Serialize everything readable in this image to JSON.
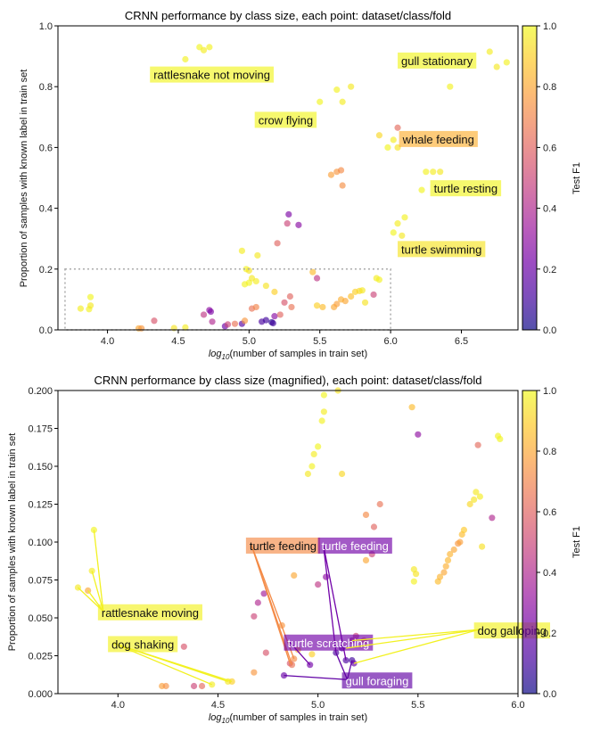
{
  "colors": {
    "viridis_stops": [
      "#0d0887",
      "#46039f",
      "#7201a8",
      "#9c179e",
      "#bd3786",
      "#d8576b",
      "#ed7953",
      "#fb9f3a",
      "#fdca26",
      "#f0f921"
    ]
  },
  "colorbar": {
    "label": "Test F1",
    "ticks": [
      "0.0",
      "0.2",
      "0.4",
      "0.6",
      "0.8",
      "1.0"
    ]
  },
  "chart_data": [
    {
      "type": "scatter",
      "title": "CRNN performance by class size, each point: dataset/class/fold",
      "xlabel_prefix": "log",
      "xlabel_sub": "10",
      "xlabel_suffix": "(number of samples in train set)",
      "ylabel": "Proportion of samples with known label in train set",
      "xlim": [
        3.65,
        6.9
      ],
      "ylim": [
        0.0,
        1.0
      ],
      "xticks": [
        4.0,
        4.5,
        5.0,
        5.5,
        6.0,
        6.5
      ],
      "xtick_labels": [
        "4.0",
        "4.5",
        "5.0",
        "5.5",
        "6.0",
        "6.5"
      ],
      "yticks": [
        0.0,
        0.2,
        0.4,
        0.6,
        0.8,
        1.0
      ],
      "ytick_labels": [
        "0.0",
        "0.2",
        "0.4",
        "0.6",
        "0.8",
        "1.0"
      ],
      "zoom_box": {
        "x": [
          3.7,
          6.0
        ],
        "y": [
          0.0,
          0.2
        ]
      },
      "points": [
        [
          4.55,
          0.89,
          0.98
        ],
        [
          4.65,
          0.93,
          0.99
        ],
        [
          4.68,
          0.92,
          0.97
        ],
        [
          4.72,
          0.93,
          0.98
        ],
        [
          5.62,
          0.79,
          0.98
        ],
        [
          5.66,
          0.75,
          0.97
        ],
        [
          5.72,
          0.8,
          0.96
        ],
        [
          5.5,
          0.75,
          0.99
        ],
        [
          6.42,
          0.8,
          0.98
        ],
        [
          6.7,
          0.915,
          0.97
        ],
        [
          6.75,
          0.865,
          0.96
        ],
        [
          6.82,
          0.88,
          0.98
        ],
        [
          6.05,
          0.665,
          0.62
        ],
        [
          5.98,
          0.6,
          0.99
        ],
        [
          6.02,
          0.625,
          0.97
        ],
        [
          6.05,
          0.6,
          0.95
        ],
        [
          5.92,
          0.64,
          0.92
        ],
        [
          6.25,
          0.52,
          0.98
        ],
        [
          6.3,
          0.52,
          0.97
        ],
        [
          6.35,
          0.52,
          0.96
        ],
        [
          6.22,
          0.46,
          0.99
        ],
        [
          5.62,
          0.52,
          0.75
        ],
        [
          5.65,
          0.525,
          0.72
        ],
        [
          5.58,
          0.51,
          0.78
        ],
        [
          5.66,
          0.475,
          0.73
        ],
        [
          6.1,
          0.37,
          0.98
        ],
        [
          6.05,
          0.35,
          0.97
        ],
        [
          6.02,
          0.32,
          0.99
        ],
        [
          6.08,
          0.31,
          0.96
        ],
        [
          5.28,
          0.38,
          0.25
        ],
        [
          5.27,
          0.35,
          0.5
        ],
        [
          5.35,
          0.345,
          0.28
        ],
        [
          5.2,
          0.285,
          0.6
        ],
        [
          4.95,
          0.26,
          0.97
        ],
        [
          5.06,
          0.245,
          0.96
        ],
        [
          4.98,
          0.2,
          0.98
        ],
        [
          5.0,
          0.195,
          0.95
        ],
        [
          3.81,
          0.07,
          0.97
        ],
        [
          3.87,
          0.068,
          0.98
        ],
        [
          3.88,
          0.08,
          0.96
        ],
        [
          3.88,
          0.108,
          0.99
        ],
        [
          4.22,
          0.005,
          0.8
        ],
        [
          4.24,
          0.005,
          0.75
        ],
        [
          4.33,
          0.03,
          0.55
        ],
        [
          4.47,
          0.006,
          0.95
        ],
        [
          4.55,
          0.008,
          0.97
        ],
        [
          4.68,
          0.05,
          0.45
        ],
        [
          4.72,
          0.065,
          0.3
        ],
        [
          4.73,
          0.06,
          0.25
        ],
        [
          4.74,
          0.027,
          0.4
        ],
        [
          4.83,
          0.012,
          0.2
        ],
        [
          4.85,
          0.018,
          0.5
        ],
        [
          4.9,
          0.02,
          0.65
        ],
        [
          4.95,
          0.02,
          0.15
        ],
        [
          4.97,
          0.03,
          0.75
        ],
        [
          5.02,
          0.07,
          0.65
        ],
        [
          5.05,
          0.075,
          0.7
        ],
        [
          5.09,
          0.027,
          0.12
        ],
        [
          5.12,
          0.032,
          0.1
        ],
        [
          5.16,
          0.025,
          0.05
        ],
        [
          5.17,
          0.022,
          0.1
        ],
        [
          5.18,
          0.045,
          0.28
        ],
        [
          5.22,
          0.05,
          0.6
        ],
        [
          5.25,
          0.09,
          0.55
        ],
        [
          5.29,
          0.11,
          0.6
        ],
        [
          5.3,
          0.075,
          0.65
        ],
        [
          5.48,
          0.08,
          0.9
        ],
        [
          5.52,
          0.075,
          0.85
        ],
        [
          5.6,
          0.075,
          0.8
        ],
        [
          5.62,
          0.085,
          0.78
        ],
        [
          5.65,
          0.1,
          0.82
        ],
        [
          5.68,
          0.095,
          0.8
        ],
        [
          5.72,
          0.11,
          0.86
        ],
        [
          5.75,
          0.125,
          0.9
        ],
        [
          5.78,
          0.128,
          0.92
        ],
        [
          5.8,
          0.13,
          0.96
        ],
        [
          5.82,
          0.09,
          0.95
        ],
        [
          5.88,
          0.116,
          0.5
        ],
        [
          5.9,
          0.17,
          0.97
        ],
        [
          5.92,
          0.165,
          0.98
        ],
        [
          5.12,
          0.145,
          0.95
        ],
        [
          5.18,
          0.125,
          0.9
        ],
        [
          5.05,
          0.16,
          0.97
        ],
        [
          4.97,
          0.15,
          0.98
        ],
        [
          5.0,
          0.155,
          0.99
        ],
        [
          5.02,
          0.17,
          0.96
        ],
        [
          5.45,
          0.19,
          0.85
        ],
        [
          5.48,
          0.17,
          0.45
        ]
      ],
      "annotations": [
        {
          "text": "rattlesnake not moving",
          "x": 4.3,
          "y": 0.834,
          "color": 0.99
        },
        {
          "text": "gull stationary",
          "x": 6.05,
          "y": 0.88,
          "color": 0.99
        },
        {
          "text": "crow flying",
          "x": 5.04,
          "y": 0.685,
          "color": 0.99
        },
        {
          "text": "whale feeding",
          "x": 6.06,
          "y": 0.622,
          "color": 0.82
        },
        {
          "text": "turtle resting",
          "x": 6.28,
          "y": 0.46,
          "color": 0.99
        },
        {
          "text": "turtle swimming",
          "x": 6.05,
          "y": 0.26,
          "color": 0.95
        }
      ]
    },
    {
      "type": "scatter",
      "title": "CRNN performance by class size (magnified), each point: dataset/class/fold",
      "xlabel_prefix": "log",
      "xlabel_sub": "10",
      "xlabel_suffix": "(number of samples in train set)",
      "ylabel": "Proportion of samples with known label in train set",
      "xlim": [
        3.7,
        6.0
      ],
      "ylim": [
        0.0,
        0.2
      ],
      "xticks": [
        4.0,
        4.5,
        5.0,
        5.5,
        6.0
      ],
      "xtick_labels": [
        "4.0",
        "4.5",
        "5.0",
        "5.5",
        "6.0"
      ],
      "yticks": [
        0.0,
        0.025,
        0.05,
        0.075,
        0.1,
        0.125,
        0.15,
        0.175,
        0.2
      ],
      "ytick_labels": [
        "0.000",
        "0.025",
        "0.050",
        "0.075",
        "0.100",
        "0.125",
        "0.150",
        "0.175",
        "0.200"
      ],
      "points": [
        [
          3.8,
          0.07,
          0.96
        ],
        [
          3.85,
          0.068,
          0.8
        ],
        [
          3.87,
          0.081,
          0.97
        ],
        [
          3.88,
          0.108,
          0.99
        ],
        [
          4.22,
          0.005,
          0.78
        ],
        [
          4.24,
          0.005,
          0.74
        ],
        [
          4.33,
          0.031,
          0.55
        ],
        [
          4.38,
          0.005,
          0.5
        ],
        [
          4.42,
          0.005,
          0.62
        ],
        [
          4.47,
          0.006,
          0.97
        ],
        [
          4.55,
          0.008,
          0.96
        ],
        [
          4.57,
          0.008,
          0.9
        ],
        [
          4.68,
          0.051,
          0.5
        ],
        [
          4.7,
          0.06,
          0.4
        ],
        [
          4.73,
          0.066,
          0.35
        ],
        [
          4.74,
          0.027,
          0.55
        ],
        [
          4.68,
          0.014,
          0.75
        ],
        [
          4.83,
          0.012,
          0.2
        ],
        [
          4.86,
          0.02,
          0.55
        ],
        [
          4.87,
          0.019,
          0.65
        ],
        [
          4.88,
          0.023,
          0.72
        ],
        [
          4.9,
          0.029,
          0.8
        ],
        [
          4.96,
          0.019,
          0.22
        ],
        [
          4.97,
          0.026,
          0.9
        ],
        [
          4.82,
          0.045,
          0.75
        ],
        [
          4.88,
          0.078,
          0.8
        ],
        [
          5.0,
          0.072,
          0.45
        ],
        [
          5.04,
          0.077,
          0.3
        ],
        [
          5.09,
          0.027,
          0.12
        ],
        [
          5.12,
          0.03,
          0.15
        ],
        [
          5.14,
          0.022,
          0.12
        ],
        [
          5.17,
          0.022,
          0.1
        ],
        [
          5.17,
          0.035,
          0.35
        ],
        [
          5.19,
          0.038,
          0.5
        ],
        [
          5.18,
          0.02,
          0.2
        ],
        [
          5.23,
          0.035,
          0.62
        ],
        [
          5.24,
          0.088,
          0.8
        ],
        [
          5.27,
          0.092,
          0.5
        ],
        [
          5.28,
          0.11,
          0.6
        ],
        [
          5.31,
          0.125,
          0.65
        ],
        [
          5.24,
          0.118,
          0.72
        ],
        [
          4.95,
          0.145,
          0.96
        ],
        [
          4.97,
          0.15,
          0.98
        ],
        [
          4.98,
          0.158,
          0.97
        ],
        [
          5.0,
          0.163,
          0.99
        ],
        [
          5.02,
          0.18,
          0.98
        ],
        [
          5.03,
          0.186,
          0.97
        ],
        [
          5.03,
          0.197,
          0.99
        ],
        [
          5.12,
          0.145,
          0.92
        ],
        [
          5.1,
          0.2,
          0.95
        ],
        [
          5.47,
          0.189,
          0.85
        ],
        [
          5.5,
          0.171,
          0.3
        ],
        [
          5.48,
          0.082,
          0.96
        ],
        [
          5.49,
          0.079,
          0.95
        ],
        [
          5.48,
          0.074,
          0.98
        ],
        [
          5.6,
          0.074,
          0.85
        ],
        [
          5.61,
          0.077,
          0.83
        ],
        [
          5.63,
          0.08,
          0.8
        ],
        [
          5.64,
          0.084,
          0.82
        ],
        [
          5.65,
          0.088,
          0.84
        ],
        [
          5.66,
          0.092,
          0.83
        ],
        [
          5.68,
          0.095,
          0.8
        ],
        [
          5.7,
          0.099,
          0.75
        ],
        [
          5.71,
          0.1,
          0.78
        ],
        [
          5.72,
          0.105,
          0.85
        ],
        [
          5.73,
          0.108,
          0.88
        ],
        [
          5.76,
          0.125,
          0.92
        ],
        [
          5.78,
          0.128,
          0.95
        ],
        [
          5.79,
          0.133,
          0.96
        ],
        [
          5.8,
          0.164,
          0.62
        ],
        [
          5.81,
          0.13,
          0.97
        ],
        [
          5.82,
          0.097,
          0.94
        ],
        [
          5.87,
          0.116,
          0.4
        ],
        [
          5.9,
          0.17,
          0.98
        ],
        [
          5.91,
          0.168,
          0.99
        ]
      ],
      "annotations": [
        {
          "text": "rattlesnake moving",
          "x": 3.9,
          "y": 0.0525,
          "color": 0.98,
          "targets": [
            [
              3.8,
              0.07
            ],
            [
              3.85,
              0.068
            ],
            [
              3.87,
              0.081
            ],
            [
              3.88,
              0.108
            ]
          ]
        },
        {
          "text": "dog shaking",
          "x": 3.95,
          "y": 0.0315,
          "color": 0.98,
          "targets": [
            [
              4.47,
              0.006
            ],
            [
              4.55,
              0.008
            ],
            [
              4.57,
              0.008
            ]
          ]
        },
        {
          "text": "turtle feeding",
          "x": 4.64,
          "y": 0.0965,
          "color": 0.72,
          "targets": [
            [
              4.86,
              0.02
            ],
            [
              4.87,
              0.019
            ],
            [
              4.88,
              0.023
            ]
          ]
        },
        {
          "text": "turtle feeding",
          "x": 5.0,
          "y": 0.0965,
          "color": 0.22,
          "targets": [
            [
              5.09,
              0.027
            ],
            [
              5.14,
              0.022
            ]
          ]
        },
        {
          "text": "turtle scratching",
          "x": 4.83,
          "y": 0.0325,
          "color": 0.22,
          "targets": [
            [
              4.96,
              0.019
            ]
          ]
        },
        {
          "text": "gull foraging",
          "x": 5.12,
          "y": 0.0075,
          "color": 0.18,
          "targets": [
            [
              4.83,
              0.012
            ],
            [
              5.09,
              0.027
            ],
            [
              5.17,
              0.022
            ]
          ]
        },
        {
          "text": "dog galloping",
          "x": 5.78,
          "y": 0.0405,
          "color": 0.98,
          "targets": [
            [
              5.14,
              0.03
            ],
            [
              5.17,
              0.035
            ],
            [
              5.18,
              0.02
            ]
          ]
        }
      ]
    }
  ]
}
